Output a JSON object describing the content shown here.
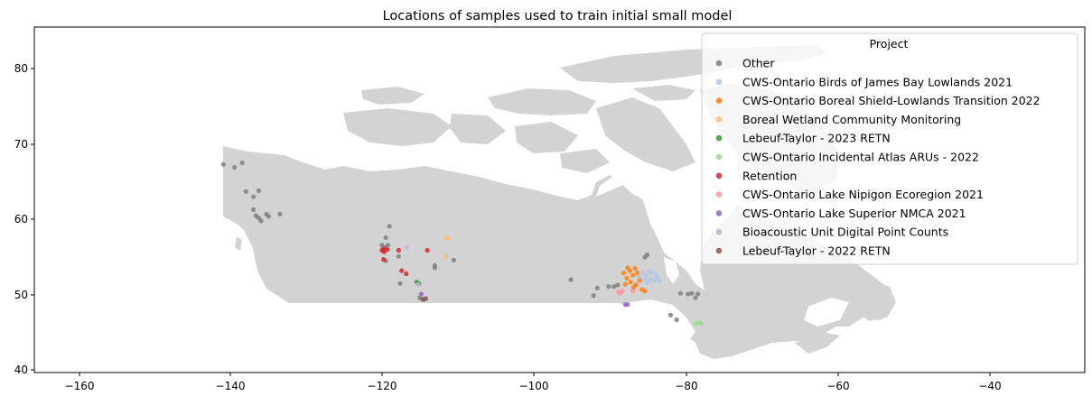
{
  "title": "Locations of samples used to train initial small model",
  "x_ticks": [
    "−160",
    "−140",
    "−120",
    "−100",
    "−80",
    "−60",
    "−40"
  ],
  "y_ticks": [
    "40",
    "50",
    "60",
    "70",
    "80"
  ],
  "legend": {
    "title": "Project",
    "placement": "upper-right",
    "entries": [
      {
        "label": "Other",
        "color": "#7f7f7f"
      },
      {
        "label": "CWS-Ontario Birds of James Bay Lowlands 2021",
        "color": "#aec7e8"
      },
      {
        "label": "CWS-Ontario Boreal Shield-Lowlands Transition 2022",
        "color": "#ff7f0e"
      },
      {
        "label": "Boreal Wetland Community Monitoring",
        "color": "#ffbb78"
      },
      {
        "label": "Lebeuf-Taylor - 2023 RETN",
        "color": "#2ca02c"
      },
      {
        "label": "CWS-Ontario Incidental Atlas ARUs - 2022",
        "color": "#98df8a"
      },
      {
        "label": "Retention",
        "color": "#d62728"
      },
      {
        "label": "CWS-Ontario Lake Nipigon Ecoregion 2021",
        "color": "#ff9896"
      },
      {
        "label": "CWS-Ontario Lake Superior NMCA 2021",
        "color": "#9467bd"
      },
      {
        "label": "Bioacoustic Unit Digital Point Counts",
        "color": "#c5b0d5"
      },
      {
        "label": "Lebeuf-Taylor - 2022 RETN",
        "color": "#8c564b"
      }
    ]
  },
  "map": {
    "land_color": "#d3d3d3",
    "xlim": [
      -166,
      -27
    ],
    "ylim": [
      39.6,
      85.4
    ]
  },
  "samples": [
    {
      "series": 0,
      "points": [
        [
          -141,
          67.2
        ],
        [
          -139.5,
          66.8
        ],
        [
          -138.5,
          67.4
        ],
        [
          -138,
          63.6
        ],
        [
          -137,
          62.9
        ],
        [
          -136.3,
          63.7
        ],
        [
          -137,
          61.2
        ],
        [
          -136.7,
          60.4
        ],
        [
          -136.3,
          60.1
        ],
        [
          -136,
          59.7
        ],
        [
          -135.3,
          60.6
        ],
        [
          -135,
          60.3
        ],
        [
          -133.5,
          60.6
        ],
        [
          -120,
          56.5
        ],
        [
          -119.5,
          56.2
        ],
        [
          -119.5,
          57.5
        ],
        [
          -119.2,
          56.5
        ],
        [
          -119.5,
          54.4
        ],
        [
          -113,
          53.8
        ],
        [
          -113,
          53.5
        ],
        [
          -110.5,
          54.5
        ],
        [
          -117.6,
          51.4
        ],
        [
          -114.5,
          49.3
        ],
        [
          -115,
          49.5
        ],
        [
          -95,
          51.9
        ],
        [
          -91.5,
          50.8
        ],
        [
          -92,
          49.8
        ],
        [
          -90,
          51
        ],
        [
          -89.3,
          51
        ],
        [
          -88.8,
          51.2
        ],
        [
          -85.2,
          54.9
        ],
        [
          -84.9,
          55.2
        ],
        [
          -81.8,
          47.2
        ],
        [
          -81,
          46.6
        ],
        [
          -80.5,
          50.1
        ],
        [
          -79.5,
          50
        ],
        [
          -79,
          50.1
        ],
        [
          -78.5,
          49.5
        ],
        [
          -78.2,
          50
        ],
        [
          -119,
          59
        ],
        [
          -117.8,
          55
        ]
      ]
    },
    {
      "series": 1,
      "points": [
        [
          -85,
          52.5
        ],
        [
          -84.5,
          52
        ],
        [
          -83.5,
          52.2
        ],
        [
          -84,
          51.8
        ],
        [
          -85.5,
          52.8
        ],
        [
          -84.8,
          51.5
        ],
        [
          -83.8,
          52.6
        ],
        [
          -85.2,
          51.9
        ],
        [
          -84.3,
          52.9
        ],
        [
          -83.3,
          51.7
        ],
        [
          -86,
          52.2
        ],
        [
          -84.6,
          53
        ]
      ]
    },
    {
      "series": 2,
      "points": [
        [
          -87.5,
          53.5
        ],
        [
          -87.2,
          53.1
        ],
        [
          -86.5,
          53.4
        ],
        [
          -86.8,
          52.5
        ],
        [
          -87.6,
          52.1
        ],
        [
          -87.1,
          51.6
        ],
        [
          -86.4,
          51.2
        ],
        [
          -85.9,
          51.8
        ],
        [
          -86.2,
          52.8
        ],
        [
          -85.6,
          50.6
        ],
        [
          -85.2,
          50.4
        ],
        [
          -87.8,
          51.3
        ],
        [
          -86.7,
          50.9
        ],
        [
          -88,
          52.8
        ]
      ]
    },
    {
      "series": 3,
      "points": [
        [
          -111.5,
          57.5
        ],
        [
          -111.2,
          57.4
        ],
        [
          -111.5,
          55
        ]
      ]
    },
    {
      "series": 4,
      "points": [
        [
          -115.4,
          51.6
        ],
        [
          -115.1,
          51.4
        ]
      ]
    },
    {
      "series": 5,
      "points": [
        [
          -78.5,
          46.1
        ],
        [
          -77.8,
          46.1
        ],
        [
          -78.1,
          46.3
        ]
      ]
    },
    {
      "series": 6,
      "points": [
        [
          -119.8,
          56
        ],
        [
          -119.3,
          55.9
        ],
        [
          -119.7,
          55.6
        ],
        [
          -120,
          55.8
        ],
        [
          -117.8,
          55.8
        ],
        [
          -114,
          55.8
        ],
        [
          -119.8,
          54.6
        ],
        [
          -117.4,
          53.1
        ],
        [
          -116.8,
          52.7
        ]
      ]
    },
    {
      "series": 7,
      "points": [
        [
          -88.7,
          50.3
        ],
        [
          -88.5,
          50.1
        ],
        [
          -86.8,
          50.4
        ],
        [
          -88.2,
          50.4
        ]
      ]
    },
    {
      "series": 8,
      "points": [
        [
          -87.8,
          48.6
        ],
        [
          -87.5,
          48.6
        ],
        [
          -114.8,
          50
        ]
      ]
    },
    {
      "series": 9,
      "points": [
        [
          -116.7,
          56.2
        ],
        [
          -115.2,
          51.3
        ]
      ]
    },
    {
      "series": 10,
      "points": [
        [
          -114.6,
          49.3
        ],
        [
          -114.2,
          49.4
        ]
      ]
    }
  ]
}
